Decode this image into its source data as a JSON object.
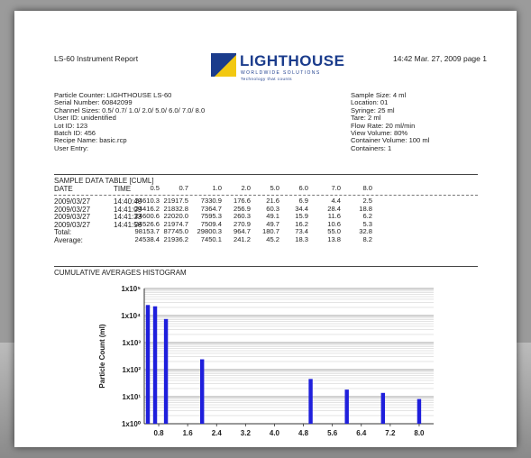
{
  "report": {
    "title": "LS-60 Instrument Report",
    "timestamp": "14:42 Mar. 27, 2009 page 1",
    "logo_text": "LIGHTHOUSE",
    "logo_sub1": "WORLDWIDE SOLUTIONS",
    "logo_sub2": "Technology that counts",
    "logo_colors": {
      "primary": "#1b3c8c",
      "accent": "#f2c811"
    }
  },
  "left_info": [
    "Particle Counter: LIGHTHOUSE LS-60",
    "Serial Number: 60842099",
    "Channel Sizes:  0.5/ 0.7/ 1.0/ 2.0/ 5.0/ 6.0/ 7.0/ 8.0",
    "User ID: unidentified",
    "Lot ID: 123",
    "Batch ID: 456",
    "Recipe Name: basic.rcp",
    "User Entry:"
  ],
  "right_info": [
    "Sample Size: 4 ml",
    "Location: 01",
    "Syringe: 25 ml",
    "Tare: 2 ml",
    "Flow Rate: 20 ml/min",
    "View Volume: 80%",
    "Container Volume: 100 ml",
    "Containers: 1"
  ],
  "table": {
    "title": "SAMPLE DATA TABLE [CUML]",
    "date_header": "DATE",
    "time_header": "TIME",
    "channels": [
      "0.5",
      "0.7",
      "1.0",
      "2.0",
      "5.0",
      "6.0",
      "7.0",
      "8.0"
    ],
    "rows": [
      {
        "date": "2009/03/27",
        "time": "14:40:40",
        "values": [
          "24610.3",
          "21917.5",
          "7330.9",
          "176.6",
          "21.6",
          "6.9",
          "4.4",
          "2.5"
        ]
      },
      {
        "date": "2009/03/27",
        "time": "14:41:09",
        "values": [
          "24416.2",
          "21832.8",
          "7364.7",
          "256.9",
          "60.3",
          "34.4",
          "28.4",
          "18.8"
        ]
      },
      {
        "date": "2009/03/27",
        "time": "14:41:33",
        "values": [
          "24600.6",
          "22020.0",
          "7595.3",
          "260.3",
          "49.1",
          "15.9",
          "11.6",
          "6.2"
        ]
      },
      {
        "date": "2009/03/27",
        "time": "14:41:56",
        "values": [
          "24526.6",
          "21974.7",
          "7509.4",
          "270.9",
          "49.7",
          "16.2",
          "10.6",
          "5.3"
        ]
      }
    ],
    "total_label": "Total:",
    "total": [
      "98153.7",
      "87745.0",
      "29800.3",
      "964.7",
      "180.7",
      "73.4",
      "55.0",
      "32.8"
    ],
    "average_label": "Average:",
    "average": [
      "24538.4",
      "21936.2",
      "7450.1",
      "241.2",
      "45.2",
      "18.3",
      "13.8",
      "8.2"
    ]
  },
  "histogram": {
    "title": "CUMULATIVE AVERAGES HISTOGRAM",
    "bar_color": "#1f1fdc"
  },
  "chart_data": {
    "type": "bar",
    "title": "CUMULATIVE AVERAGES HISTOGRAM",
    "xlabel": "",
    "ylabel": "Particle Count (ml)",
    "log_scale_y": true,
    "grid": true,
    "x_ticks": [
      "0.8",
      "1.6",
      "2.4",
      "3.2",
      "4.0",
      "4.8",
      "5.6",
      "6.4",
      "7.2",
      "8.0"
    ],
    "y_ticks": [
      "1x10⁵",
      "1x10⁴",
      "1x10³",
      "1x10²",
      "1x10¹",
      "1x10⁰"
    ],
    "ylim": [
      1,
      100000
    ],
    "xlim": [
      0.4,
      8.4
    ],
    "x": [
      0.5,
      0.7,
      1.0,
      2.0,
      5.0,
      6.0,
      7.0,
      8.0
    ],
    "values": [
      24538.4,
      21936.2,
      7450.1,
      241.2,
      45.2,
      18.3,
      13.8,
      8.2
    ]
  }
}
